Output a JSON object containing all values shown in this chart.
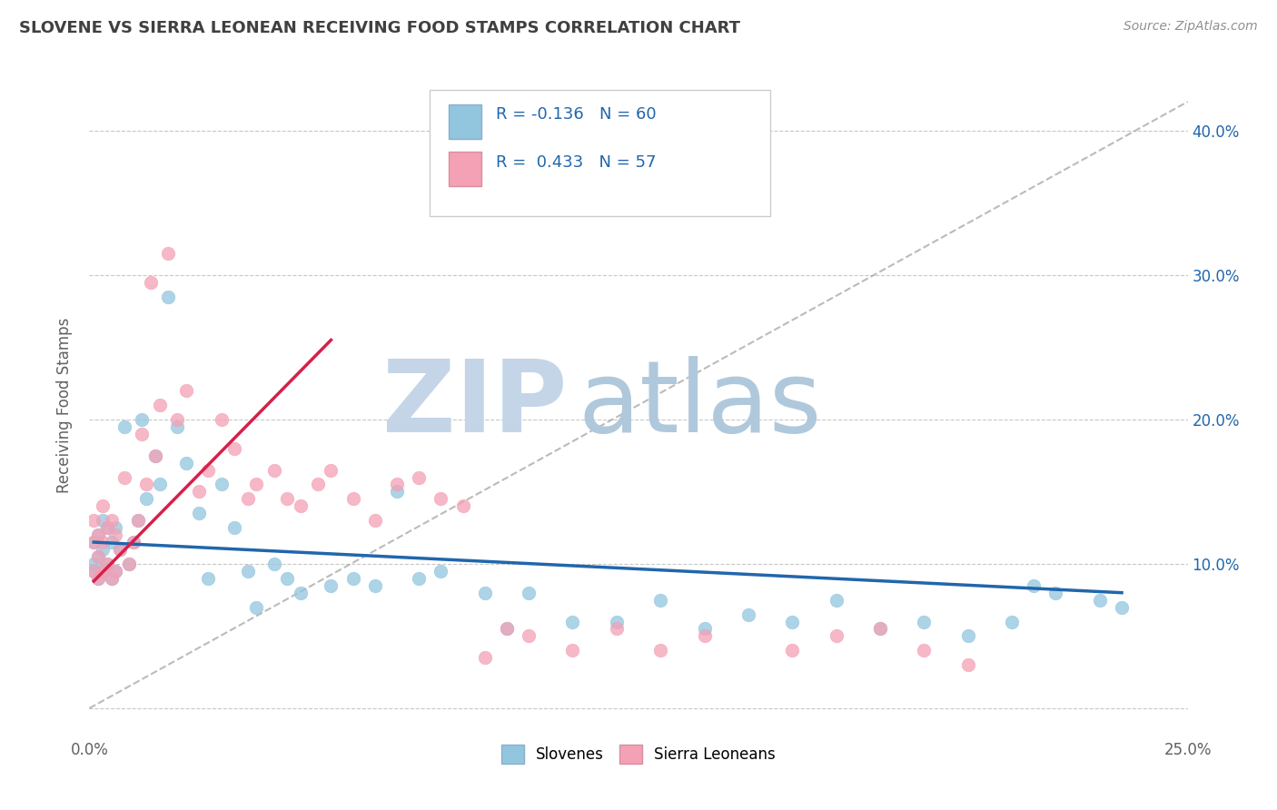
{
  "title": "SLOVENE VS SIERRA LEONEAN RECEIVING FOOD STAMPS CORRELATION CHART",
  "source": "Source: ZipAtlas.com",
  "ylabel": "Receiving Food Stamps",
  "xlim": [
    0.0,
    0.25
  ],
  "ylim": [
    -0.02,
    0.44
  ],
  "xticks": [
    0.0,
    0.25
  ],
  "xtick_labels": [
    "0.0%",
    "25.0%"
  ],
  "yticks": [
    0.0,
    0.1,
    0.2,
    0.3,
    0.4
  ],
  "ytick_labels_right": [
    "",
    "10.0%",
    "20.0%",
    "30.0%",
    "40.0%"
  ],
  "legend_label1": "Slovenes",
  "legend_label2": "Sierra Leoneans",
  "R1": -0.136,
  "N1": 60,
  "R2": 0.433,
  "N2": 57,
  "color_blue": "#92c5de",
  "color_pink": "#f4a0b5",
  "color_blue_line": "#2166ac",
  "color_pink_line": "#d6204a",
  "background_color": "#ffffff",
  "grid_color": "#c8c8c8",
  "title_color": "#404040",
  "axis_color": "#606060",
  "watermark_zip_color": "#c5d5e8",
  "watermark_atlas_color": "#b0c8dc",
  "slovene_x": [
    0.001,
    0.001,
    0.001,
    0.002,
    0.002,
    0.002,
    0.003,
    0.003,
    0.003,
    0.004,
    0.004,
    0.005,
    0.005,
    0.006,
    0.006,
    0.007,
    0.008,
    0.009,
    0.01,
    0.011,
    0.012,
    0.013,
    0.015,
    0.016,
    0.018,
    0.02,
    0.022,
    0.025,
    0.027,
    0.03,
    0.033,
    0.036,
    0.038,
    0.042,
    0.045,
    0.048,
    0.055,
    0.06,
    0.065,
    0.07,
    0.075,
    0.08,
    0.09,
    0.095,
    0.1,
    0.11,
    0.12,
    0.13,
    0.14,
    0.15,
    0.16,
    0.17,
    0.18,
    0.19,
    0.2,
    0.21,
    0.215,
    0.22,
    0.23,
    0.235
  ],
  "slovene_y": [
    0.115,
    0.1,
    0.095,
    0.12,
    0.105,
    0.09,
    0.13,
    0.11,
    0.095,
    0.125,
    0.1,
    0.115,
    0.09,
    0.125,
    0.095,
    0.11,
    0.195,
    0.1,
    0.115,
    0.13,
    0.2,
    0.145,
    0.175,
    0.155,
    0.285,
    0.195,
    0.17,
    0.135,
    0.09,
    0.155,
    0.125,
    0.095,
    0.07,
    0.1,
    0.09,
    0.08,
    0.085,
    0.09,
    0.085,
    0.15,
    0.09,
    0.095,
    0.08,
    0.055,
    0.08,
    0.06,
    0.06,
    0.075,
    0.055,
    0.065,
    0.06,
    0.075,
    0.055,
    0.06,
    0.05,
    0.06,
    0.085,
    0.08,
    0.075,
    0.07
  ],
  "sierraleone_x": [
    0.001,
    0.001,
    0.001,
    0.002,
    0.002,
    0.002,
    0.003,
    0.003,
    0.003,
    0.004,
    0.004,
    0.005,
    0.005,
    0.006,
    0.006,
    0.007,
    0.008,
    0.009,
    0.01,
    0.011,
    0.012,
    0.013,
    0.014,
    0.015,
    0.016,
    0.018,
    0.02,
    0.022,
    0.025,
    0.027,
    0.03,
    0.033,
    0.036,
    0.038,
    0.042,
    0.045,
    0.048,
    0.052,
    0.055,
    0.06,
    0.065,
    0.07,
    0.075,
    0.08,
    0.085,
    0.09,
    0.095,
    0.1,
    0.11,
    0.12,
    0.13,
    0.14,
    0.16,
    0.17,
    0.18,
    0.19,
    0.2
  ],
  "sierraleone_y": [
    0.13,
    0.115,
    0.095,
    0.12,
    0.105,
    0.09,
    0.14,
    0.115,
    0.095,
    0.125,
    0.1,
    0.13,
    0.09,
    0.12,
    0.095,
    0.11,
    0.16,
    0.1,
    0.115,
    0.13,
    0.19,
    0.155,
    0.295,
    0.175,
    0.21,
    0.315,
    0.2,
    0.22,
    0.15,
    0.165,
    0.2,
    0.18,
    0.145,
    0.155,
    0.165,
    0.145,
    0.14,
    0.155,
    0.165,
    0.145,
    0.13,
    0.155,
    0.16,
    0.145,
    0.14,
    0.035,
    0.055,
    0.05,
    0.04,
    0.055,
    0.04,
    0.05,
    0.04,
    0.05,
    0.055,
    0.04,
    0.03
  ],
  "ref_line_x": [
    0.0,
    0.25
  ],
  "ref_line_y": [
    0.0,
    0.42
  ],
  "blue_trend_x": [
    0.001,
    0.235
  ],
  "blue_trend_y": [
    0.115,
    0.08
  ],
  "pink_trend_x": [
    0.001,
    0.055
  ],
  "pink_trend_y": [
    0.088,
    0.255
  ]
}
